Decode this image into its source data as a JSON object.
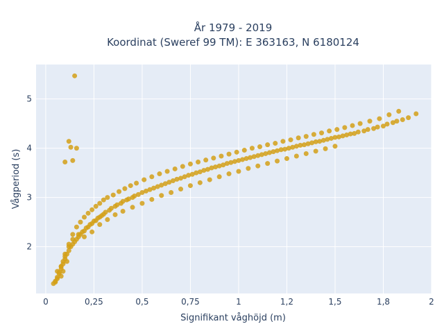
{
  "chart_data": {
    "type": "scatter",
    "title": [
      "År 1979 - 2019",
      "Koordinat (Sweref 99 TM): E 363163, N 6180124"
    ],
    "xlabel": "Signifikant våghöjd (m)",
    "ylabel": "Vågperiod (s)",
    "xlim": [
      -0.05,
      2.0
    ],
    "ylim": [
      1.05,
      5.7
    ],
    "xticks": [
      0,
      0.25,
      0.5,
      0.75,
      1,
      1.25,
      1.5,
      1.75,
      2
    ],
    "xtick_labels": [
      "0",
      "0,25",
      "0,5",
      "0,75",
      "1",
      "1,2",
      "1,5",
      "1,8",
      "2"
    ],
    "yticks": [
      2,
      3,
      4,
      5
    ],
    "ytick_labels": [
      "2",
      "3",
      "4",
      "5"
    ],
    "grid": true,
    "marker_color": "#d4a017",
    "background_color": "#e5ecf6",
    "x": [
      0.04,
      0.05,
      0.06,
      0.07,
      0.08,
      0.09,
      0.1,
      0.11,
      0.12,
      0.13,
      0.14,
      0.15,
      0.16,
      0.17,
      0.18,
      0.2,
      0.22,
      0.24,
      0.26,
      0.28,
      0.3,
      0.33,
      0.36,
      0.39,
      0.42,
      0.45,
      0.48,
      0.52,
      0.56,
      0.6,
      0.64,
      0.68,
      0.72,
      0.76,
      0.8,
      0.84,
      0.88,
      0.92,
      0.96,
      1.0,
      1.04,
      1.08,
      1.12,
      1.16,
      1.2,
      1.24,
      1.28,
      1.32,
      1.36,
      1.4,
      1.44,
      1.48,
      1.52,
      1.56,
      1.6,
      1.65,
      1.7,
      1.75,
      1.8,
      1.85,
      1.88,
      1.92,
      0.15,
      0.12,
      0.13,
      0.1,
      0.14,
      0.16,
      0.08,
      0.09,
      0.11,
      0.19,
      0.21,
      0.23,
      0.25,
      0.27,
      0.29,
      0.31,
      0.34,
      0.37,
      0.4,
      0.43,
      0.46,
      0.5,
      0.54,
      0.58,
      0.62,
      0.66,
      0.7,
      0.74,
      0.78,
      0.82,
      0.86,
      0.9,
      0.94,
      0.98,
      1.02,
      1.06,
      1.1,
      1.14,
      1.18,
      1.22,
      1.26,
      1.3,
      1.34,
      1.38,
      1.42,
      1.46,
      1.5,
      1.54,
      1.58,
      1.62,
      1.67,
      1.72,
      1.77,
      1.82,
      0.05,
      0.06,
      0.07,
      0.08,
      0.09,
      0.1,
      0.12,
      0.14,
      0.16,
      0.18,
      0.2,
      0.22,
      0.24,
      0.26,
      0.28,
      0.3,
      0.32,
      0.35,
      0.38,
      0.41,
      0.44,
      0.47,
      0.51,
      0.55,
      0.59,
      0.63,
      0.67,
      0.71,
      0.75,
      0.79,
      0.83,
      0.87,
      0.91,
      0.95,
      0.99,
      1.03,
      1.07,
      1.11,
      1.15,
      1.19,
      1.23,
      1.27,
      1.31,
      1.35,
      1.39,
      1.43,
      1.47,
      1.51,
      1.55,
      1.59,
      1.63,
      1.68,
      1.73,
      1.78,
      1.83,
      0.06,
      0.08,
      0.1,
      0.12,
      0.14,
      0.17,
      0.2,
      0.24,
      0.28,
      0.32,
      0.36,
      0.4,
      0.45,
      0.5,
      0.55,
      0.6,
      0.65,
      0.7,
      0.75,
      0.8,
      0.85,
      0.9,
      0.95,
      1.0,
      1.05,
      1.1,
      1.15,
      1.2,
      1.25,
      1.3,
      1.35,
      1.4,
      1.45,
      1.5
    ],
    "y": [
      1.25,
      1.28,
      1.35,
      1.45,
      1.55,
      1.65,
      1.75,
      1.85,
      1.92,
      2.0,
      2.05,
      2.1,
      2.15,
      2.2,
      2.25,
      2.32,
      2.4,
      2.47,
      2.53,
      2.6,
      2.66,
      2.74,
      2.82,
      2.88,
      2.95,
      3.0,
      3.06,
      3.13,
      3.19,
      3.25,
      3.31,
      3.37,
      3.42,
      3.47,
      3.52,
      3.57,
      3.62,
      3.66,
      3.71,
      3.75,
      3.79,
      3.83,
      3.87,
      3.91,
      3.95,
      3.98,
      4.02,
      4.06,
      4.09,
      4.13,
      4.16,
      4.2,
      4.23,
      4.27,
      4.3,
      4.35,
      4.4,
      4.45,
      4.52,
      4.58,
      4.62,
      4.7,
      5.47,
      4.14,
      4.02,
      3.72,
      3.75,
      4.0,
      1.4,
      1.5,
      1.7,
      2.3,
      2.38,
      2.45,
      2.52,
      2.58,
      2.63,
      2.7,
      2.78,
      2.85,
      2.92,
      2.97,
      3.03,
      3.1,
      3.16,
      3.22,
      3.28,
      3.34,
      3.39,
      3.45,
      3.5,
      3.55,
      3.6,
      3.64,
      3.69,
      3.73,
      3.77,
      3.81,
      3.85,
      3.89,
      3.93,
      3.97,
      4.0,
      4.04,
      4.07,
      4.11,
      4.14,
      4.18,
      4.22,
      4.25,
      4.29,
      4.33,
      4.38,
      4.43,
      4.49,
      4.55,
      1.3,
      1.38,
      1.48,
      1.6,
      1.7,
      1.85,
      2.05,
      2.25,
      2.4,
      2.5,
      2.6,
      2.68,
      2.75,
      2.82,
      2.88,
      2.95,
      3.0,
      3.05,
      3.12,
      3.18,
      3.24,
      3.29,
      3.36,
      3.42,
      3.48,
      3.53,
      3.58,
      3.63,
      3.68,
      3.72,
      3.76,
      3.8,
      3.84,
      3.88,
      3.92,
      3.96,
      4.0,
      4.03,
      4.07,
      4.1,
      4.14,
      4.17,
      4.21,
      4.24,
      4.28,
      4.31,
      4.35,
      4.38,
      4.42,
      4.46,
      4.5,
      4.55,
      4.6,
      4.68,
      4.75,
      1.5,
      1.6,
      1.8,
      2.0,
      2.15,
      2.25,
      2.2,
      2.3,
      2.45,
      2.55,
      2.65,
      2.72,
      2.8,
      2.88,
      2.96,
      3.04,
      3.1,
      3.17,
      3.24,
      3.3,
      3.36,
      3.42,
      3.48,
      3.53,
      3.59,
      3.64,
      3.69,
      3.74,
      3.79,
      3.84,
      3.89,
      3.94,
      3.99,
      4.04
    ]
  }
}
